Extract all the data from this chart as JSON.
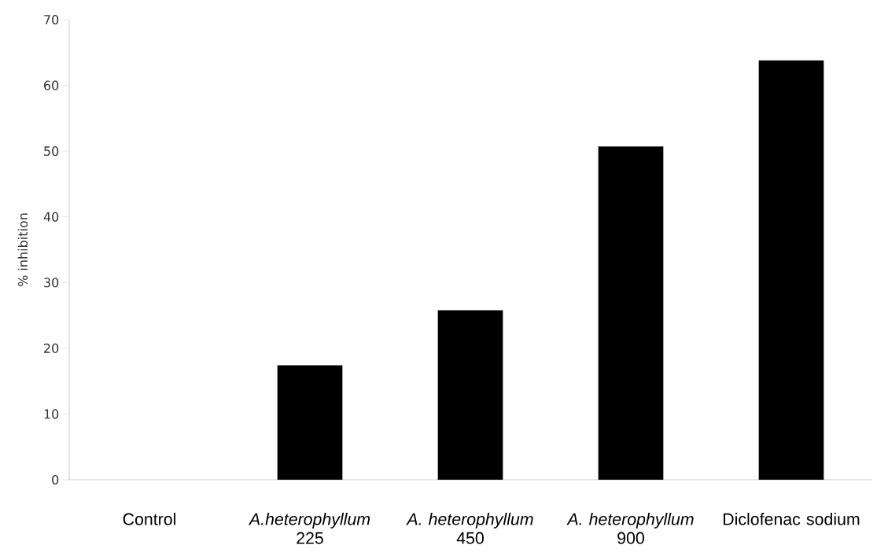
{
  "chart_data": {
    "type": "bar",
    "ylabel": "% inhibition",
    "categories": [
      "Control",
      "*A.heterophyllum* 225",
      "*A. heterophyllum* 450",
      "*A. heterophyllum* 900",
      "Diclofenac sodium"
    ],
    "values": [
      0,
      17.4,
      25.8,
      50.7,
      63.8
    ],
    "color": "#000000",
    "ylim": [
      0,
      70
    ],
    "yticks": [
      0,
      10,
      20,
      30,
      40,
      50,
      60,
      70
    ],
    "grid": false
  }
}
